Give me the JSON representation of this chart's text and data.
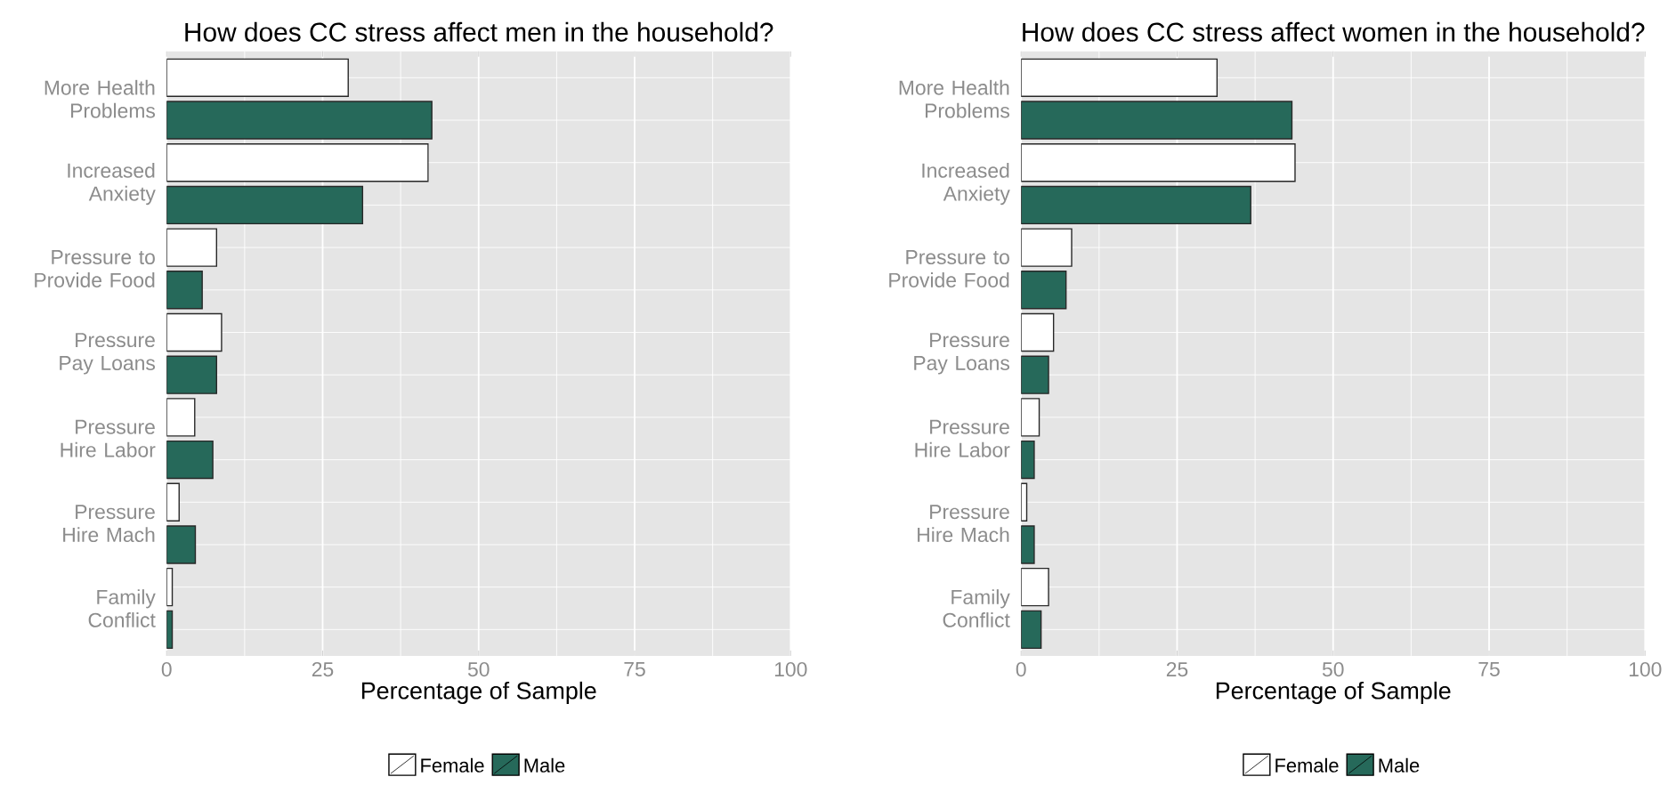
{
  "chart_data": [
    {
      "type": "bar",
      "orientation": "horizontal",
      "title": "How does CC stress affect men in the household?",
      "xlabel": "Percentage of Sample",
      "categories": [
        "More Health Problems",
        "Increased Anxiety",
        "Pressure to Provide Food",
        "Pressure Pay Loans",
        "Pressure Hire Labor",
        "Pressure Hire Mach",
        "Family Conflict"
      ],
      "series": [
        {
          "name": "Female",
          "color": "#ffffff",
          "values": [
            29.1,
            41.9,
            8.0,
            8.8,
            4.5,
            2.0,
            0.9
          ]
        },
        {
          "name": "Male",
          "color": "#26695a",
          "values": [
            42.5,
            31.4,
            5.7,
            8.0,
            7.4,
            4.6,
            0.9
          ]
        }
      ],
      "xlim": [
        0,
        100
      ],
      "xticks": [
        0,
        25,
        50,
        75,
        100
      ],
      "grid": true,
      "legend": "bottom"
    },
    {
      "type": "bar",
      "orientation": "horizontal",
      "title": "How does CC stress affect women in the household?",
      "xlabel": "Percentage of Sample",
      "categories": [
        "More Health Problems",
        "Increased Anxiety",
        "Pressure to Provide Food",
        "Pressure Pay Loans",
        "Pressure Hire Labor",
        "Pressure Hire Mach",
        "Family Conflict"
      ],
      "series": [
        {
          "name": "Female",
          "color": "#ffffff",
          "values": [
            31.4,
            43.9,
            8.1,
            5.2,
            2.9,
            0.9,
            4.4
          ]
        },
        {
          "name": "Male",
          "color": "#26695a",
          "values": [
            43.4,
            36.8,
            7.2,
            4.4,
            2.1,
            2.1,
            3.2
          ]
        }
      ],
      "xlim": [
        0,
        100
      ],
      "xticks": [
        0,
        25,
        50,
        75,
        100
      ],
      "grid": true,
      "legend": "bottom"
    }
  ]
}
